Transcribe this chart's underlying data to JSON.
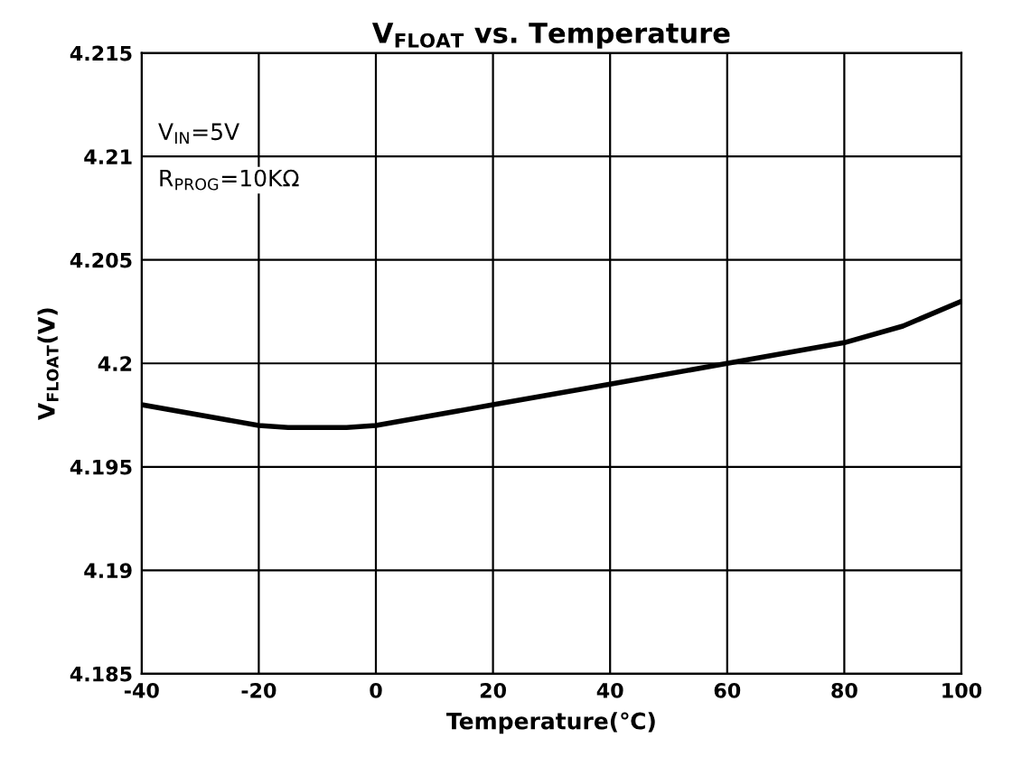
{
  "chart_data": {
    "type": "line",
    "title": "V$_{FLOAT}$ vs. Temperature",
    "xlabel": "Temperature(℃)",
    "ylabel": "V$_{FLOAT}$(V)",
    "annotations": [
      "V$_{IN}$=5V",
      "R$_{PROG}$=10KΩ"
    ],
    "x": [
      -40,
      -20,
      -15,
      -10,
      -5,
      0,
      20,
      40,
      60,
      80,
      90,
      100
    ],
    "series": [
      {
        "color": "#000000",
        "values": [
          4.198,
          4.197,
          4.1969,
          4.1969,
          4.1969,
          4.197,
          4.198,
          4.199,
          4.2,
          4.201,
          4.2018,
          4.203
        ]
      }
    ],
    "xlim": [
      -40,
      100
    ],
    "xticks": [
      -40,
      -20,
      0,
      20,
      40,
      60,
      80,
      100
    ],
    "ylim": [
      4.185,
      4.215
    ],
    "yticks": [
      4.185,
      4.19,
      4.195,
      4.2,
      4.205,
      4.21,
      4.215
    ],
    "grid": true,
    "marker": "none",
    "line_style": "solid"
  }
}
